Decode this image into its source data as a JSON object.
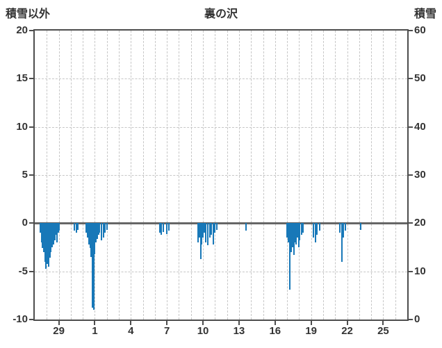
{
  "header": {
    "left_label": "積雪以外",
    "title": "裏の沢",
    "right_label": "積雪"
  },
  "chart_data": {
    "type": "bar",
    "title": "裏の沢",
    "left_axis": {
      "label": "積雪以外",
      "min": -10,
      "max": 20,
      "tick_step": 5,
      "ticks": [
        20,
        15,
        10,
        5,
        0,
        -5,
        -10
      ]
    },
    "right_axis": {
      "label": "積雪",
      "min": 0,
      "max": 60,
      "tick_step": 10,
      "ticks": [
        60,
        50,
        40,
        30,
        20,
        10,
        0
      ]
    },
    "x_axis": {
      "domain_days": [
        0,
        31
      ],
      "tick_positions": [
        2,
        5,
        8,
        11,
        14,
        17,
        20,
        23,
        26,
        29
      ],
      "tick_labels": [
        "29",
        "1",
        "4",
        "7",
        "10",
        "13",
        "16",
        "19",
        "22",
        "25"
      ]
    },
    "grid": {
      "h_values": [
        15,
        10,
        5,
        -5
      ],
      "v_day_step": 1
    },
    "styles": {
      "bar_color": "#1878b8",
      "grid_color": "#c6c6c6",
      "axis_color": "#4d4d4d",
      "zero_line_color": "#666666",
      "text_color": "#333333"
    },
    "bars": [
      [
        0.45,
        -1.0
      ],
      [
        0.55,
        -2.0
      ],
      [
        0.65,
        -2.6
      ],
      [
        0.75,
        -3.0
      ],
      [
        0.85,
        -4.0
      ],
      [
        0.95,
        -4.7
      ],
      [
        1.05,
        -4.2
      ],
      [
        1.15,
        -4.5
      ],
      [
        1.25,
        -3.6
      ],
      [
        1.35,
        -3.0
      ],
      [
        1.45,
        -2.5
      ],
      [
        1.55,
        -2.2
      ],
      [
        1.65,
        -1.8
      ],
      [
        1.75,
        -1.2
      ],
      [
        1.85,
        -2.0
      ],
      [
        1.95,
        -1.0
      ],
      [
        2.05,
        -0.8
      ],
      [
        3.3,
        -0.8
      ],
      [
        3.45,
        -1.0
      ],
      [
        3.6,
        -0.7
      ],
      [
        4.3,
        -1.0
      ],
      [
        4.4,
        -1.5
      ],
      [
        4.5,
        -2.2
      ],
      [
        4.6,
        -2.6
      ],
      [
        4.7,
        -3.5
      ],
      [
        4.8,
        -8.8
      ],
      [
        4.9,
        -9.0
      ],
      [
        5.0,
        -3.2
      ],
      [
        5.1,
        -2.0
      ],
      [
        5.2,
        -1.6
      ],
      [
        5.3,
        -1.2
      ],
      [
        5.4,
        -1.0
      ],
      [
        5.55,
        -1.8
      ],
      [
        5.7,
        -1.5
      ],
      [
        5.85,
        -1.0
      ],
      [
        6.0,
        -0.7
      ],
      [
        10.4,
        -1.0
      ],
      [
        10.55,
        -1.2
      ],
      [
        10.7,
        -0.9
      ],
      [
        11.0,
        -1.1
      ],
      [
        11.15,
        -0.8
      ],
      [
        13.6,
        -2.0
      ],
      [
        13.7,
        -1.5
      ],
      [
        13.8,
        -3.7
      ],
      [
        13.9,
        -2.2
      ],
      [
        14.0,
        -1.5
      ],
      [
        14.1,
        -1.0
      ],
      [
        14.25,
        -2.0
      ],
      [
        14.4,
        -2.3
      ],
      [
        14.55,
        -1.5
      ],
      [
        14.7,
        -1.2
      ],
      [
        14.85,
        -2.2
      ],
      [
        15.0,
        -1.0
      ],
      [
        15.15,
        -0.7
      ],
      [
        17.6,
        -0.8
      ],
      [
        21.0,
        -1.5
      ],
      [
        21.1,
        -2.0
      ],
      [
        21.25,
        -6.9
      ],
      [
        21.35,
        -3.0
      ],
      [
        21.45,
        -2.5
      ],
      [
        21.55,
        -3.3
      ],
      [
        21.65,
        -2.0
      ],
      [
        21.75,
        -2.2
      ],
      [
        21.85,
        -1.5
      ],
      [
        21.95,
        -2.5
      ],
      [
        22.05,
        -1.8
      ],
      [
        22.2,
        -1.2
      ],
      [
        22.35,
        -1.0
      ],
      [
        23.2,
        -1.5
      ],
      [
        23.35,
        -2.0
      ],
      [
        23.5,
        -1.2
      ],
      [
        23.7,
        -0.8
      ],
      [
        25.4,
        -1.0
      ],
      [
        25.55,
        -4.0
      ],
      [
        25.7,
        -1.5
      ],
      [
        25.85,
        -0.8
      ],
      [
        27.1,
        -0.7
      ]
    ]
  }
}
